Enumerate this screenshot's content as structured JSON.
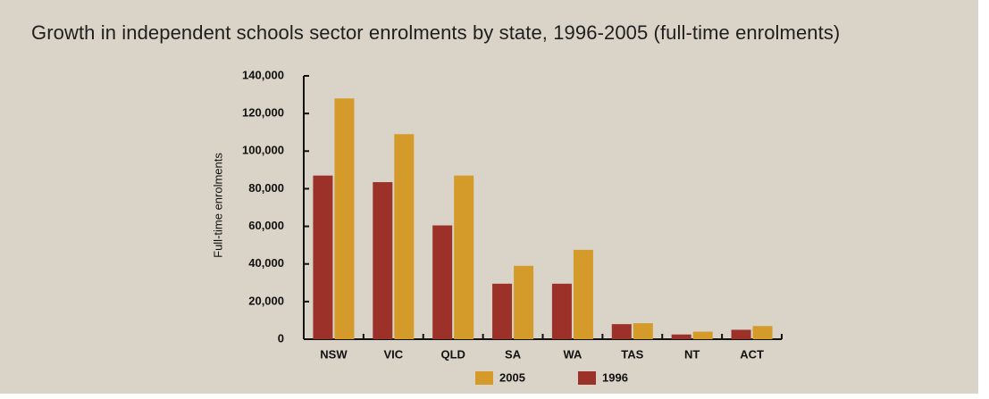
{
  "chart_data": {
    "type": "bar",
    "title": "Growth in independent schools sector enrolments by state, 1996-2005 (full-time enrolments)",
    "xlabel": "",
    "ylabel": "Full-time enrolments",
    "categories": [
      "NSW",
      "VIC",
      "QLD",
      "SA",
      "WA",
      "TAS",
      "NT",
      "ACT"
    ],
    "series": [
      {
        "name": "1996",
        "color": "#9b3128",
        "values": [
          87000,
          83500,
          60500,
          29500,
          29500,
          8000,
          2500,
          5000
        ]
      },
      {
        "name": "2005",
        "color": "#d49b2a",
        "values": [
          128000,
          109000,
          87000,
          39000,
          47500,
          8500,
          4000,
          7000
        ]
      }
    ],
    "ylim": [
      0,
      140000
    ],
    "yticks": [
      0,
      20000,
      40000,
      60000,
      80000,
      100000,
      120000,
      140000
    ],
    "ytick_labels": [
      "0",
      "20,000",
      "40,000",
      "60,000",
      "80,000",
      "100,000",
      "120,000",
      "140,000"
    ],
    "legend_order": [
      "2005",
      "1996"
    ],
    "legend_position": "bottom",
    "grid": false
  }
}
